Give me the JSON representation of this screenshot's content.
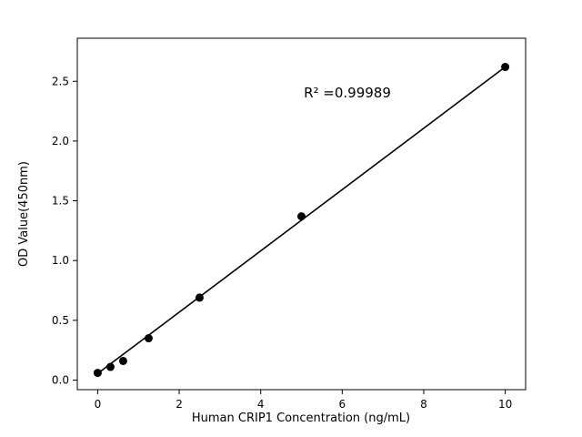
{
  "chart_data": {
    "type": "scatter",
    "title": "",
    "xlabel": "Human CRIP1 Concentration (ng/mL)",
    "ylabel": "OD Value(450nm)",
    "annotation": "R² =0.99989",
    "x": [
      0,
      0.313,
      0.625,
      1.25,
      2.5,
      5,
      10
    ],
    "y": [
      0.06,
      0.11,
      0.16,
      0.35,
      0.69,
      1.37,
      2.62
    ],
    "fit_line": {
      "x0": 0,
      "y0": 0.055,
      "x1": 10,
      "y1": 2.62
    },
    "xlim": [
      -0.5,
      10.5
    ],
    "ylim": [
      -0.08,
      2.86
    ],
    "xticks": [
      0,
      2,
      4,
      6,
      8,
      10
    ],
    "yticks": [
      0.0,
      0.5,
      1.0,
      1.5,
      2.0,
      2.5
    ],
    "marker_color": "#000000",
    "line_color": "#000000",
    "background_color": "#ffffff",
    "grid": false,
    "legend": null
  }
}
